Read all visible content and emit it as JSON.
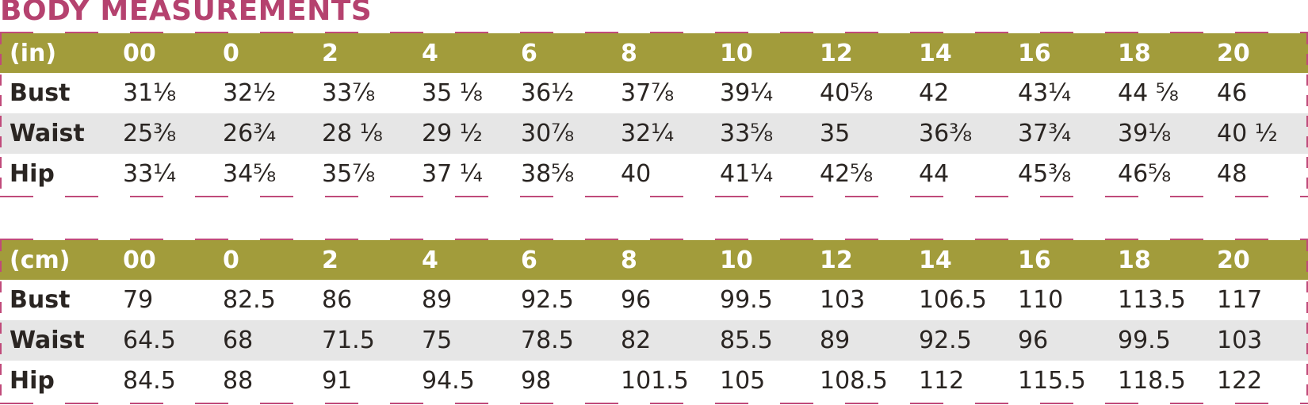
{
  "title": "BODY MEASUREMENTS",
  "colors": {
    "title": "#b5426f",
    "header_bg": "#a29c3b",
    "shaded_row": "#e6e6e6",
    "dash_border": "#c04a7a"
  },
  "tables": [
    {
      "unit": "(in)",
      "sizes": [
        "00",
        "0",
        "2",
        "4",
        "6",
        "8",
        "10",
        "12",
        "14",
        "16",
        "18",
        "20"
      ],
      "rows": [
        {
          "label": "Bust",
          "values": [
            "31⅛",
            "32½",
            "33⅞",
            "35 ⅛",
            "36½",
            "37⅞",
            "39¼",
            "40⅝",
            "42",
            "43¼",
            "44 ⅝",
            "46"
          ]
        },
        {
          "label": "Waist",
          "values": [
            "25⅜",
            "26¾",
            "28 ⅛",
            "29 ½",
            "30⅞",
            "32¼",
            "33⅝",
            "35",
            "36⅜",
            "37¾",
            "39⅛",
            "40 ½"
          ]
        },
        {
          "label": "Hip",
          "values": [
            "33¼",
            "34⅝",
            "35⅞",
            "37 ¼",
            "38⅝",
            "40",
            "41¼",
            "42⅝",
            "44",
            "45⅜",
            "46⅝",
            "48"
          ]
        }
      ]
    },
    {
      "unit": "(cm)",
      "sizes": [
        "00",
        "0",
        "2",
        "4",
        "6",
        "8",
        "10",
        "12",
        "14",
        "16",
        "18",
        "20"
      ],
      "rows": [
        {
          "label": "Bust",
          "values": [
            "79",
            "82.5",
            "86",
            "89",
            "92.5",
            "96",
            "99.5",
            "103",
            "106.5",
            "110",
            "113.5",
            "117"
          ]
        },
        {
          "label": "Waist",
          "values": [
            "64.5",
            "68",
            "71.5",
            "75",
            "78.5",
            "82",
            "85.5",
            "89",
            "92.5",
            "96",
            "99.5",
            "103"
          ]
        },
        {
          "label": "Hip",
          "values": [
            "84.5",
            "88",
            "91",
            "94.5",
            "98",
            "101.5",
            "105",
            "108.5",
            "112",
            "115.5",
            "118.5",
            "122"
          ]
        }
      ]
    }
  ]
}
